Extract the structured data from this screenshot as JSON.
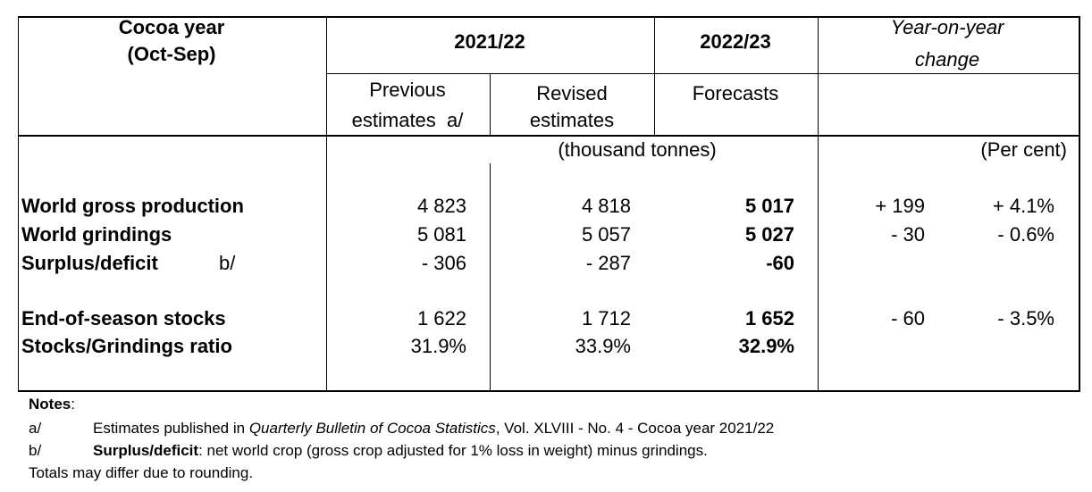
{
  "header": {
    "col0": [
      "Cocoa year",
      "(Oct-Sep)"
    ],
    "group_2021": "2021/22",
    "group_2022": "2022/23",
    "yoy": [
      "Year-on-year",
      "change"
    ],
    "sub_previous": [
      "Previous",
      "estimates  a/"
    ],
    "sub_revised": [
      "Revised",
      "estimates"
    ],
    "sub_forecasts": "Forecasts",
    "unit_tonnes": "(thousand tonnes)",
    "unit_percent": "(Per cent)"
  },
  "rows": [
    {
      "label": "World gross production",
      "note": "",
      "previous": "4 823",
      "revised": "4 818",
      "forecast": "5 017",
      "change_abs": "+ 199",
      "change_pct": "+ 4.1%"
    },
    {
      "label": "World grindings",
      "note": "",
      "previous": "5 081",
      "revised": "5 057",
      "forecast": "5 027",
      "change_abs": "- 30",
      "change_pct": "- 0.6%"
    },
    {
      "label": "Surplus/deficit",
      "note": "b/",
      "previous": "- 306",
      "revised": "- 287",
      "forecast": "-60",
      "change_abs": "",
      "change_pct": ""
    },
    {
      "label": "End-of-season stocks",
      "note": "",
      "previous": "1 622",
      "revised": "1 712",
      "forecast": "1 652",
      "change_abs": "- 60",
      "change_pct": "- 3.5%"
    },
    {
      "label": "Stocks/Grindings ratio",
      "note": "",
      "previous": "31.9%",
      "revised": "33.9%",
      "forecast": "32.9%",
      "change_abs": "",
      "change_pct": ""
    }
  ],
  "notes": {
    "title": "Notes",
    "colon": ":",
    "a_key": "a/",
    "a_text_1": "Estimates published in ",
    "a_text_italic": "Quarterly Bulletin of Cocoa Statistics",
    "a_text_2": ", Vol. XLVIII - No. 4 - Cocoa year 2021/22",
    "b_key": "b/",
    "b_bold": "Surplus/deficit",
    "b_text": ": net world crop (gross crop adjusted for 1% loss in weight) minus grindings.",
    "totals": "Totals may differ due to rounding."
  }
}
